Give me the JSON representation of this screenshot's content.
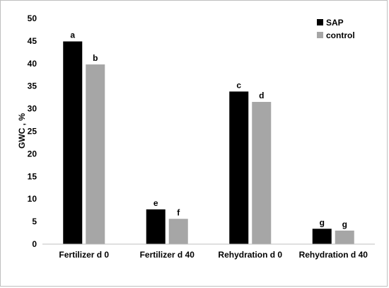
{
  "chart_data": {
    "type": "bar",
    "categories": [
      "Fertilizer d 0",
      "Fertilizer d 40",
      "Rehydration d 0",
      "Rehydration d 40"
    ],
    "series": [
      {
        "name": "SAP",
        "color": "#000000",
        "values": [
          44.9,
          7.7,
          33.8,
          3.4
        ],
        "labels": [
          "a",
          "e",
          "c",
          "g"
        ]
      },
      {
        "name": "control",
        "color": "#a6a6a6",
        "values": [
          39.8,
          5.6,
          31.5,
          3.0
        ],
        "labels": [
          "b",
          "f",
          "d",
          "g"
        ]
      }
    ],
    "ylabel": "GWC , %",
    "xlabel": "",
    "ylim": [
      0,
      50
    ],
    "yticks": [
      "0",
      "5",
      "10",
      "15",
      "20",
      "25",
      "30",
      "35",
      "40",
      "45",
      "50"
    ],
    "grid": false,
    "legend_position": "top-right"
  }
}
